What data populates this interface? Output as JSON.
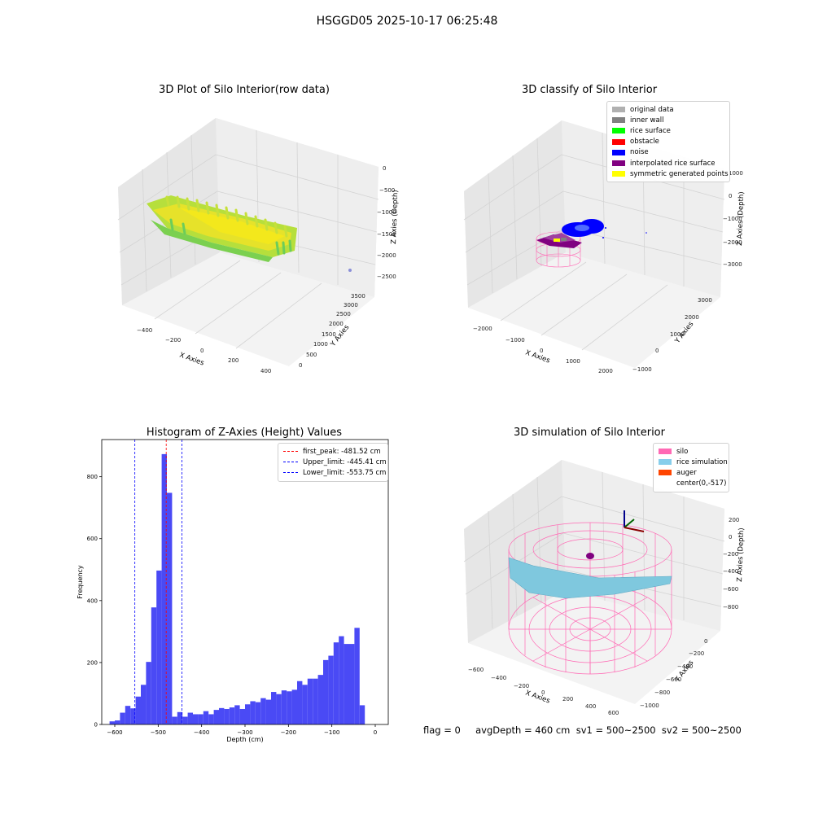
{
  "suptitle": "HSGGD05 2025-10-17 06:25:48",
  "panel1": {
    "title": "3D Plot of Silo Interior(row data)",
    "x_label": "X Axies",
    "y_label": "Y Axies",
    "z_label": "Z Axies (Depth)",
    "x_ticks": [
      "−400",
      "−200",
      "0",
      "200",
      "400"
    ],
    "y_ticks": [
      "0",
      "500",
      "1000",
      "1500",
      "2000",
      "2500",
      "3000",
      "3500"
    ],
    "z_ticks": [
      "0",
      "−500",
      "−1000",
      "−1500",
      "−2000",
      "−2500"
    ]
  },
  "panel2": {
    "title": "3D classify of Silo Interior",
    "x_label": "X Axies",
    "y_label": "Y Axies",
    "z_label": "Z Axies (Depth)",
    "x_ticks": [
      "−2000",
      "−1000",
      "0",
      "1000",
      "2000"
    ],
    "y_ticks": [
      "−1000",
      "0",
      "1000",
      "2000",
      "3000"
    ],
    "z_ticks": [
      "1000",
      "0",
      "−1000",
      "−2000",
      "−3000"
    ],
    "legend": [
      {
        "label": "original data",
        "color": "#b0b0b0"
      },
      {
        "label": "inner wall",
        "color": "#808080"
      },
      {
        "label": "rice surface",
        "color": "#00ff00"
      },
      {
        "label": "obstacle",
        "color": "#ff0000"
      },
      {
        "label": "noise",
        "color": "#0000ff"
      },
      {
        "label": "interpolated rice surface",
        "color": "#800080"
      },
      {
        "label": "symmetric generated points",
        "color": "#ffff00"
      }
    ]
  },
  "panel3": {
    "title": "Histogram of Z-Axies (Height) Values",
    "xlabel": "Depth (cm)",
    "ylabel": "Frequency",
    "legend": [
      {
        "label": "first_peak: -481.52 cm",
        "color": "#ff0000"
      },
      {
        "label": "Upper_limit: -445.41 cm",
        "color": "#0000ff"
      },
      {
        "label": "Lower_limit: -553.75 cm",
        "color": "#0000ff"
      }
    ]
  },
  "panel4": {
    "title": "3D simulation of Silo Interior",
    "x_label": "X Axies",
    "y_label": "Y Axies",
    "z_label": "Z Axies (Depth)",
    "x_ticks": [
      "−600",
      "−400",
      "−200",
      "0",
      "200",
      "400",
      "600"
    ],
    "y_ticks": [
      "0",
      "−200",
      "−400",
      "−600",
      "−800",
      "−1000"
    ],
    "z_ticks": [
      "200",
      "0",
      "−200",
      "−400",
      "−600",
      "−800"
    ],
    "legend": [
      {
        "label": "silo",
        "color": "#ff69b4"
      },
      {
        "label": "rice simulation",
        "color": "#87ceeb"
      },
      {
        "label": "auger",
        "color": "#ff4500"
      },
      {
        "label": "center(0,-517)",
        "color": ""
      }
    ]
  },
  "footer": "flag = 0     avgDepth = 460 cm  sv1 = 500~2500  sv2 = 500~2500",
  "chart_data": {
    "type": "bar",
    "title": "Histogram of Z-Axies (Height) Values",
    "xlabel": "Depth (cm)",
    "ylabel": "Frequency",
    "xlim": [
      -630,
      30
    ],
    "ylim": [
      0,
      920
    ],
    "x_ticks": [
      -600,
      -500,
      -400,
      -300,
      -200,
      -100,
      0
    ],
    "y_ticks": [
      0,
      200,
      400,
      600,
      800
    ],
    "bin_width": 12,
    "bin_starts": [
      -612,
      -600,
      -588,
      -576,
      -564,
      -552,
      -540,
      -528,
      -516,
      -504,
      -492,
      -480,
      -468,
      -456,
      -444,
      -432,
      -420,
      -408,
      -396,
      -384,
      -372,
      -360,
      -348,
      -336,
      -324,
      -312,
      -300,
      -288,
      -276,
      -264,
      -252,
      -240,
      -228,
      -216,
      -204,
      -192,
      -180,
      -168,
      -156,
      -144,
      -132,
      -120,
      -108,
      -96,
      -84,
      -72,
      -60,
      -48,
      -36,
      -24,
      -12
    ],
    "values": [
      10,
      13,
      38,
      60,
      52,
      90,
      128,
      202,
      378,
      497,
      873,
      748,
      25,
      40,
      25,
      38,
      33,
      33,
      43,
      33,
      47,
      53,
      50,
      55,
      62,
      50,
      65,
      75,
      72,
      85,
      80,
      105,
      98,
      110,
      107,
      112,
      140,
      128,
      148,
      148,
      160,
      208,
      222,
      265,
      285,
      260,
      260,
      312,
      62,
      0,
      0
    ],
    "vlines": [
      {
        "name": "first_peak",
        "x": -481.52,
        "color": "#ff0000",
        "style": "dashed"
      },
      {
        "name": "Upper_limit",
        "x": -445.41,
        "color": "#0000ff",
        "style": "dashed"
      },
      {
        "name": "Lower_limit",
        "x": -553.75,
        "color": "#0000ff",
        "style": "dashed"
      }
    ],
    "bar_color": "#4a4af5",
    "legend_position": "upper right"
  }
}
